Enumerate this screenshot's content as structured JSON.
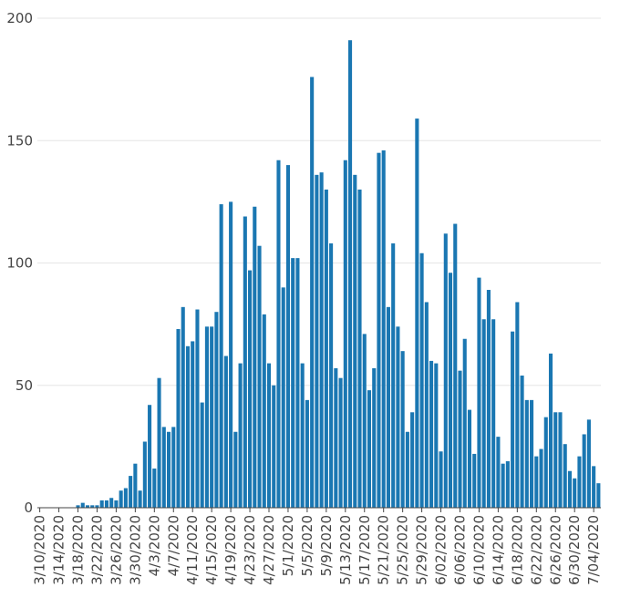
{
  "chart_data": {
    "type": "bar",
    "title": "",
    "xlabel": "",
    "ylabel": "",
    "ylim": [
      0,
      200
    ],
    "yticks": [
      0,
      50,
      100,
      150,
      200
    ],
    "grid": "horizontal",
    "bar_color": "#1a77b2",
    "x_start": "3/10/2020",
    "xtick_labels": [
      "3/10/2020",
      "3/14/2020",
      "3/18/2020",
      "3/22/2020",
      "3/26/2020",
      "3/30/2020",
      "4/3/2020",
      "4/7/2020",
      "4/11/2020",
      "4/15/2020",
      "4/19/2020",
      "4/23/2020",
      "4/27/2020",
      "5/1/2020",
      "5/5/2020",
      "5/9/2020",
      "5/13/2020",
      "5/17/2020",
      "5/21/2020",
      "5/25/2020",
      "5/29/2020",
      "6/02/2020",
      "6/06/2020",
      "6/10/2020",
      "6/14/2020",
      "6/18/2020",
      "6/22/2020",
      "6/26/2020",
      "6/30/2020",
      "7/04/2020"
    ],
    "values": [
      0,
      0,
      0,
      0,
      0,
      0,
      0,
      0,
      1,
      2,
      1,
      1,
      1,
      3,
      3,
      4,
      3,
      7,
      8,
      13,
      18,
      7,
      27,
      42,
      16,
      53,
      33,
      31,
      33,
      73,
      82,
      66,
      68,
      81,
      43,
      74,
      74,
      80,
      124,
      62,
      125,
      31,
      59,
      119,
      97,
      123,
      107,
      79,
      59,
      50,
      142,
      90,
      140,
      102,
      102,
      59,
      44,
      176,
      136,
      137,
      130,
      108,
      57,
      53,
      142,
      191,
      136,
      130,
      71,
      48,
      57,
      145,
      146,
      82,
      108,
      74,
      64,
      31,
      39,
      159,
      104,
      84,
      60,
      59,
      23,
      112,
      96,
      116,
      56,
      69,
      40,
      22,
      94,
      77,
      89,
      77,
      29,
      18,
      19,
      72,
      84,
      54,
      44,
      44,
      21,
      24,
      37,
      63,
      39,
      39,
      26,
      15,
      12,
      21,
      30,
      36,
      17,
      10
    ]
  }
}
